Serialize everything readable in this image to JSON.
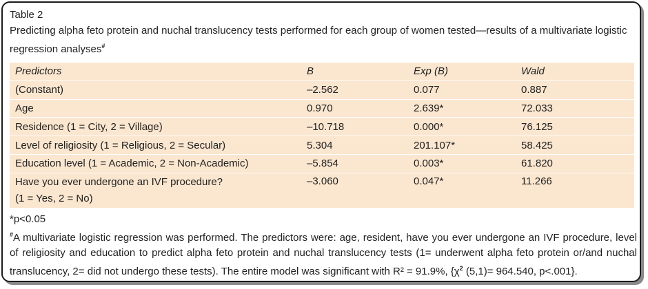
{
  "table_label": "Table 2",
  "caption": "Predicting alpha feto protein and nuchal translucency tests performed for each group of women tested—results of a multivariate logistic regression analyses",
  "caption_mark": "#",
  "headers": [
    "Predictors",
    "B",
    "Exp (B)",
    "Wald"
  ],
  "rows": [
    {
      "predictor": "(Constant)",
      "predictor_line2": "",
      "b": "–2.562",
      "expb": "0.077",
      "wald": "0.887"
    },
    {
      "predictor": "Age",
      "predictor_line2": "",
      "b": "0.970",
      "expb": "2.639*",
      "wald": "72.033"
    },
    {
      "predictor": "Residence (1 = City, 2 = Village)",
      "predictor_line2": "",
      "b": "–10.718",
      "expb": "0.000*",
      "wald": "76.125"
    },
    {
      "predictor": "Level of religiosity (1 = Religious, 2 = Secular)",
      "predictor_line2": "",
      "b": "5.304",
      "expb": "201.107*",
      "wald": "58.425"
    },
    {
      "predictor": "Education level (1 = Academic, 2 = Non-Academic)",
      "predictor_line2": "",
      "b": "–5.854",
      "expb": "0.003*",
      "wald": "61.820"
    },
    {
      "predictor": "Have you ever undergone an IVF procedure?",
      "predictor_line2": "(1 = Yes, 2 = No)",
      "b": "–3.060",
      "expb": "0.047*",
      "wald": "11.266"
    }
  ],
  "footnote1": "*p<0.05",
  "footnote2_mark": "#",
  "footnote2_text": "A multivariate logistic regression was performed. The predictors were: age, resident, have you ever undergone an IVF procedure, level of religiosity and education to predict alpha feto protein and nuchal translucency tests (1= underwent alpha feto protein or/and nuchal translucency, 2= did not undergo these tests). The entire model was significant with R² = 91.9%, {χ",
  "footnote2_sup": "2",
  "footnote2_tail": " (5,1)= 964.540, p<.001}."
}
